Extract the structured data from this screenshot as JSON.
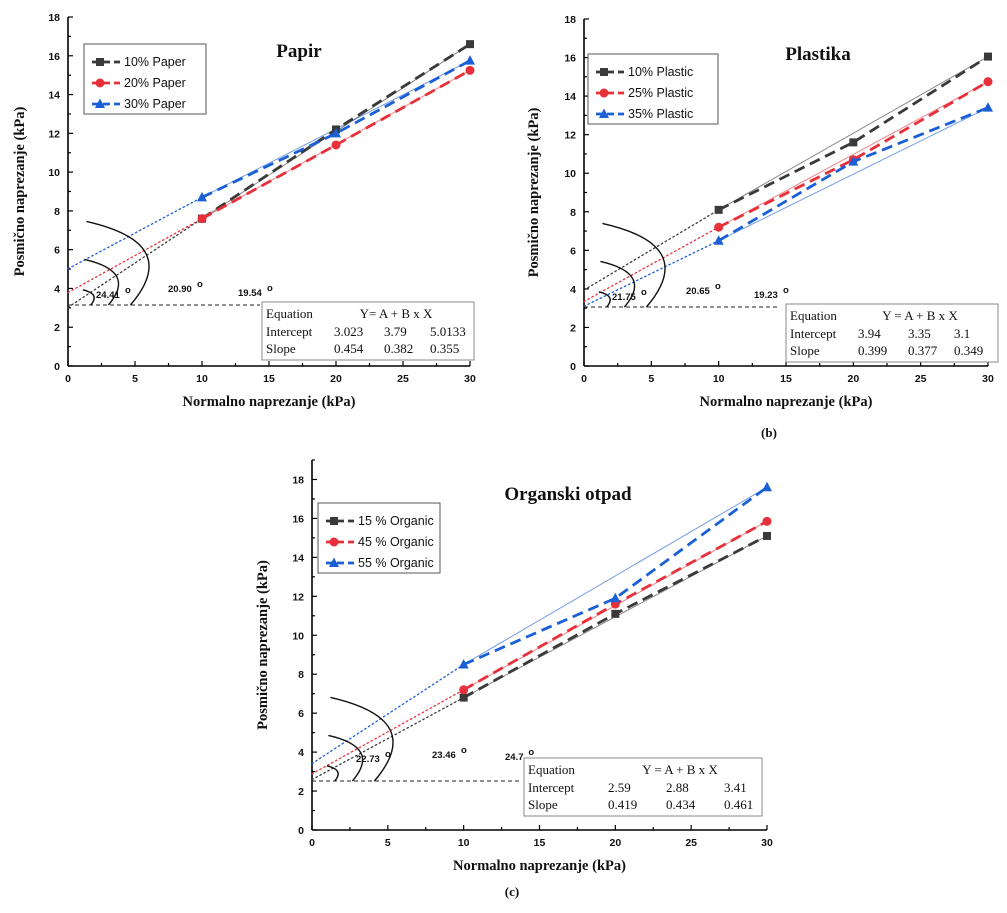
{
  "chart_data": [
    {
      "type": "line",
      "title": "Papir",
      "xlabel": "Normalno naprezanje (kPa)",
      "ylabel": "Posmično naprezanje (kPa)",
      "xlim": [
        0,
        30
      ],
      "ylim": [
        0,
        18
      ],
      "xticks": [
        "0",
        "5",
        "10",
        "15",
        "20",
        "25",
        "30"
      ],
      "yticks": [
        "0",
        "2",
        "4",
        "6",
        "8",
        "10",
        "12",
        "14",
        "16",
        "18"
      ],
      "legend_position": "top-left",
      "series": [
        {
          "name": "10% Paper",
          "marker": "square",
          "color": "#3a3a3a",
          "x": [
            10,
            20,
            30
          ],
          "y": [
            7.6,
            12.2,
            16.6
          ]
        },
        {
          "name": "20% Paper",
          "marker": "circle",
          "color": "#e8303a",
          "x": [
            10,
            20,
            30
          ],
          "y": [
            7.6,
            11.4,
            15.25
          ]
        },
        {
          "name": "30% Paper",
          "marker": "triangle",
          "color": "#1a5fd6",
          "x": [
            10,
            20,
            30
          ],
          "y": [
            8.7,
            12.0,
            15.75
          ]
        }
      ],
      "equation_table": {
        "header": [
          "Equation",
          "Y= A + B x X"
        ],
        "rows": [
          {
            "label": "Intercept",
            "values": [
              "3.023",
              "3.79",
              "5.0133"
            ]
          },
          {
            "label": "Slope",
            "values": [
              "0.454",
              "0.382",
              "0.355"
            ]
          }
        ]
      },
      "angles": [
        "24.41",
        "20.90",
        "19.54"
      ]
    },
    {
      "type": "line",
      "title": "Plastika",
      "xlabel": "Normalno naprezanje (kPa)",
      "ylabel": "Posmično naprezanje (kPa)",
      "xlim": [
        0,
        30
      ],
      "ylim": [
        0,
        18
      ],
      "xticks": [
        "0",
        "5",
        "10",
        "15",
        "20",
        "25",
        "30"
      ],
      "yticks": [
        "0",
        "2",
        "4",
        "6",
        "8",
        "10",
        "12",
        "14",
        "16",
        "18"
      ],
      "legend_position": "top-left",
      "panel_label": "(b)",
      "series": [
        {
          "name": "10% Plastic",
          "marker": "square",
          "color": "#3a3a3a",
          "x": [
            10,
            20,
            30
          ],
          "y": [
            8.1,
            11.6,
            16.05
          ]
        },
        {
          "name": "25% Plastic",
          "marker": "circle",
          "color": "#e8303a",
          "x": [
            10,
            20,
            30
          ],
          "y": [
            7.2,
            10.7,
            14.75
          ]
        },
        {
          "name": "35% Plastic",
          "marker": "triangle",
          "color": "#1a5fd6",
          "x": [
            10,
            20,
            30
          ],
          "y": [
            6.5,
            10.6,
            13.4
          ]
        }
      ],
      "equation_table": {
        "header": [
          "Equation",
          "Y = A + B x X"
        ],
        "rows": [
          {
            "label": "Intercept",
            "values": [
              "3.94",
              "3.35",
              "3.1"
            ]
          },
          {
            "label": "Slope",
            "values": [
              "0.399",
              "0.377",
              "0.349"
            ]
          }
        ]
      },
      "angles": [
        "21.75",
        "20.65",
        "19.23"
      ]
    },
    {
      "type": "line",
      "title": "Organski otpad",
      "xlabel": "Normalno naprezanje (kPa)",
      "ylabel": "Posmično naprezanje (kPa)",
      "xlim": [
        0,
        30
      ],
      "ylim": [
        0,
        19
      ],
      "xticks": [
        "0",
        "5",
        "10",
        "15",
        "20",
        "25",
        "30"
      ],
      "yticks": [
        "0",
        "2",
        "4",
        "6",
        "8",
        "10",
        "12",
        "14",
        "16",
        "18"
      ],
      "legend_position": "top-left",
      "panel_label": "(c)",
      "series": [
        {
          "name": "15 % Organic",
          "marker": "square",
          "color": "#3a3a3a",
          "x": [
            10,
            20,
            30
          ],
          "y": [
            6.8,
            11.1,
            15.1
          ]
        },
        {
          "name": "45 % Organic",
          "marker": "circle",
          "color": "#e8303a",
          "x": [
            10,
            20,
            30
          ],
          "y": [
            7.2,
            11.6,
            15.85
          ]
        },
        {
          "name": "55 % Organic",
          "marker": "triangle",
          "color": "#1a5fd6",
          "x": [
            10,
            20,
            30
          ],
          "y": [
            8.5,
            11.9,
            17.6
          ]
        }
      ],
      "equation_table": {
        "header": [
          "Equation",
          "Y = A + B x X"
        ],
        "rows": [
          {
            "label": "Intercept",
            "values": [
              "2.59",
              "2.88",
              "3.41"
            ]
          },
          {
            "label": "Slope",
            "values": [
              "0.419",
              "0.434",
              "0.461"
            ]
          }
        ]
      },
      "angles": [
        "22.73",
        "23.46",
        "24.7"
      ]
    }
  ]
}
